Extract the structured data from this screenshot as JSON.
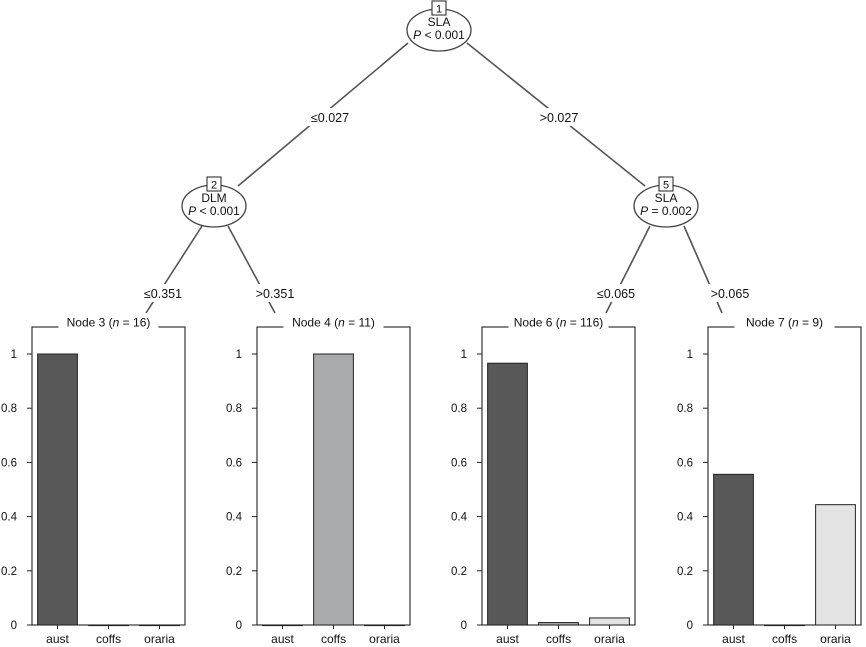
{
  "tree": {
    "inner_nodes": [
      {
        "id": "1",
        "variable": "SLA",
        "p_label": "P",
        "p_text": " < 0.001"
      },
      {
        "id": "2",
        "variable": "DLM",
        "p_label": "P",
        "p_text": " < 0.001"
      },
      {
        "id": "5",
        "variable": "SLA",
        "p_label": "P",
        "p_text": " = 0.002"
      }
    ],
    "edges": [
      {
        "from": "1",
        "to": "2",
        "label": "≤0.027"
      },
      {
        "from": "1",
        "to": "5",
        "label": ">0.027"
      },
      {
        "from": "2",
        "to": "3",
        "label": "≤0.351"
      },
      {
        "from": "2",
        "to": "4",
        "label": ">0.351"
      },
      {
        "from": "5",
        "to": "6",
        "label": "≤0.065"
      },
      {
        "from": "5",
        "to": "7",
        "label": ">0.065"
      }
    ]
  },
  "chart_data": {
    "type": "bar",
    "categories": [
      "aust",
      "coffs",
      "oraria"
    ],
    "y_ticks": [
      "0",
      "0.2",
      "0.4",
      "0.6",
      "0.8",
      "1"
    ],
    "ylim": [
      0,
      1
    ],
    "colors": {
      "aust": "#585858",
      "coffs": "#a9aaac",
      "oraria": "#e4e4e4"
    },
    "panels": [
      {
        "node": "3",
        "title_prefix": "Node 3 (",
        "n_symbol": "n",
        "n_text": " = 16)",
        "values": [
          1.0,
          0.0,
          0.0
        ]
      },
      {
        "node": "4",
        "title_prefix": "Node 4 (",
        "n_symbol": "n",
        "n_text": " = 11)",
        "values": [
          0.0,
          1.0,
          0.0
        ]
      },
      {
        "node": "6",
        "title_prefix": "Node 6 (",
        "n_symbol": "n",
        "n_text": " = 116)",
        "values": [
          0.966,
          0.009,
          0.026
        ]
      },
      {
        "node": "7",
        "title_prefix": "Node 7 (",
        "n_symbol": "n",
        "n_text": " = 9)",
        "values": [
          0.556,
          0.0,
          0.444
        ]
      }
    ]
  }
}
